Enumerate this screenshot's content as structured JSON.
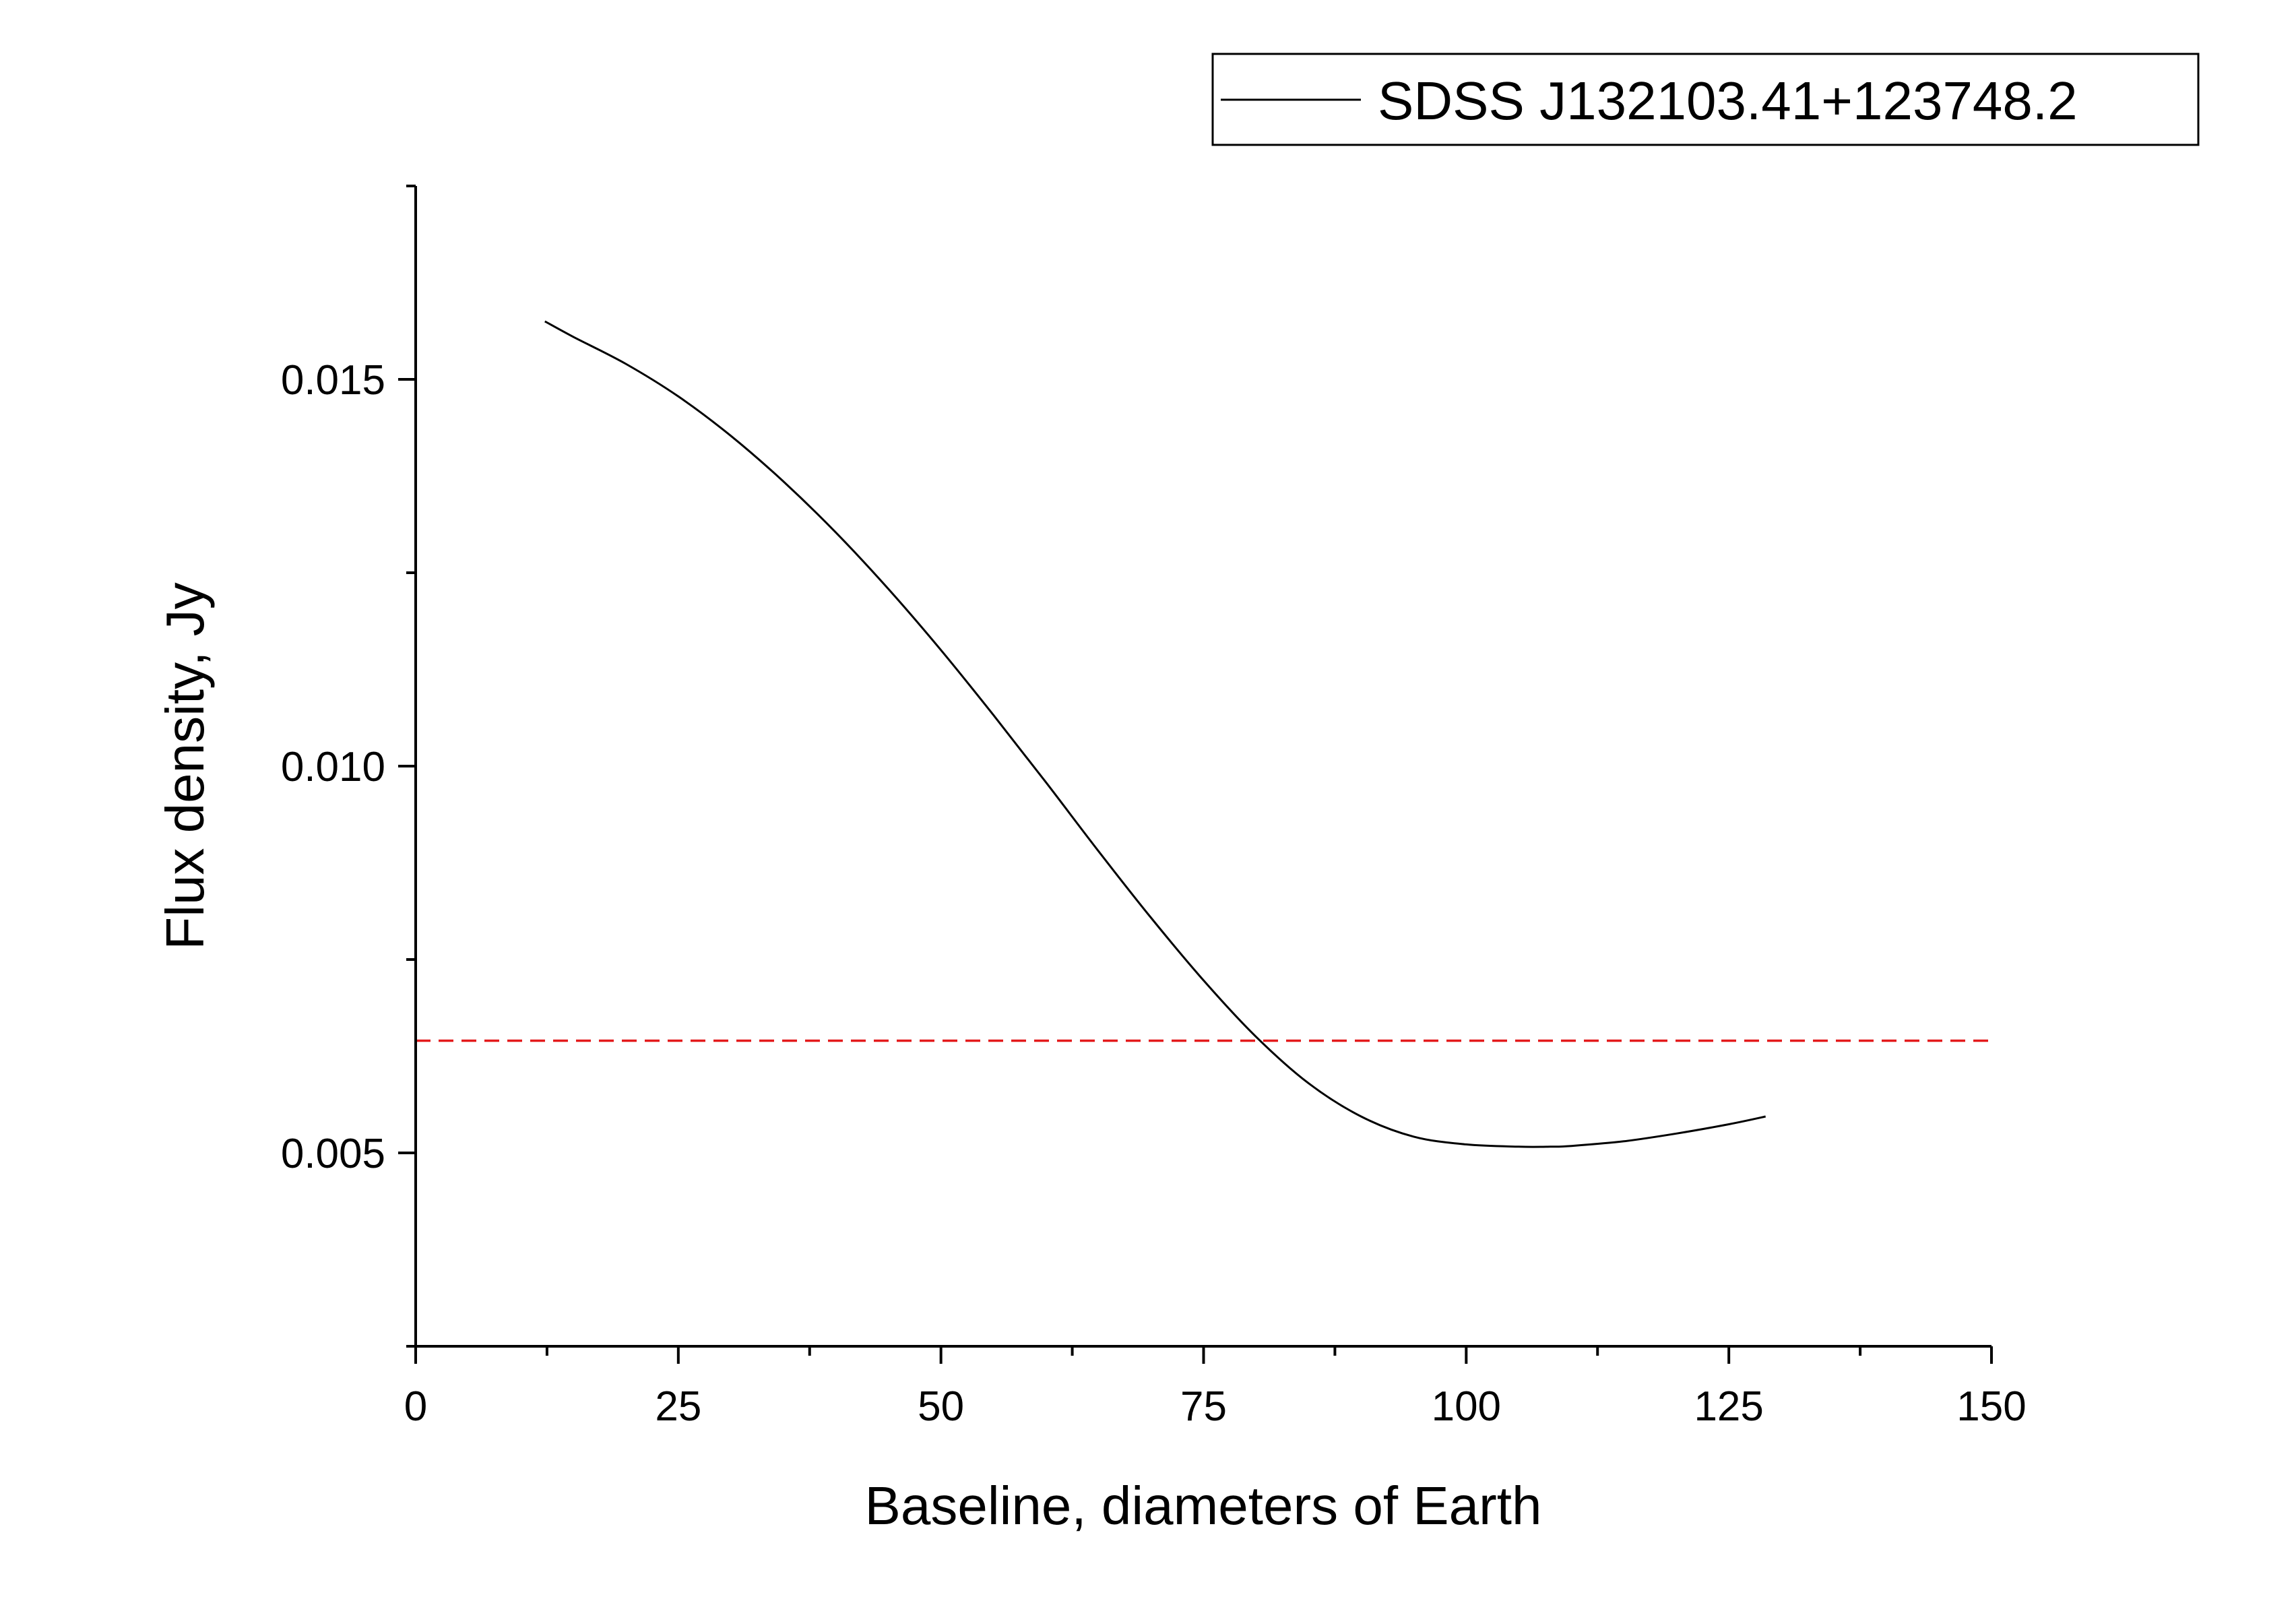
{
  "chart_data": {
    "type": "line",
    "xlabel": "Baseline, diameters of Earth",
    "ylabel": "Flux density, Jy",
    "xlim": [
      0,
      150
    ],
    "ylim": [
      0.0025,
      0.0175
    ],
    "x_ticks": [
      0,
      25,
      50,
      75,
      100,
      125,
      150
    ],
    "x_tick_labels": [
      "0",
      "25",
      "50",
      "75",
      "100",
      "125",
      "150"
    ],
    "x_minor_ticks": [
      12.5,
      37.5,
      62.5,
      87.5,
      112.5,
      137.5
    ],
    "y_ticks": [
      0.005,
      0.01,
      0.015
    ],
    "y_tick_labels": [
      "0.005",
      "0.010",
      "0.015"
    ],
    "y_minor_ticks": [
      0.0025,
      0.0075,
      0.0125,
      0.0175
    ],
    "grid": false,
    "legend_position": "top-right",
    "series": [
      {
        "name": "SDSS J132103.41+123748.2",
        "color": "#000000",
        "style": "solid",
        "x": [
          12.3,
          15,
          20,
          25,
          30,
          35,
          40,
          45,
          50,
          55,
          60,
          65,
          70,
          75,
          80,
          85,
          90,
          95,
          100,
          105,
          108,
          110,
          115,
          120,
          125,
          128.5
        ],
        "y": [
          0.01575,
          0.01555,
          0.0152,
          0.01478,
          0.01427,
          0.01368,
          0.01302,
          0.01229,
          0.0115,
          0.01066,
          0.00979,
          0.0089,
          0.00804,
          0.00723,
          0.0065,
          0.0059,
          0.00547,
          0.00521,
          0.00511,
          0.00508,
          0.00508,
          0.00509,
          0.00515,
          0.00525,
          0.00537,
          0.00547
        ]
      },
      {
        "color": "#e41a1c",
        "style": "dashed",
        "x": [
          0,
          150
        ],
        "y": [
          0.00645,
          0.00645
        ]
      }
    ]
  }
}
